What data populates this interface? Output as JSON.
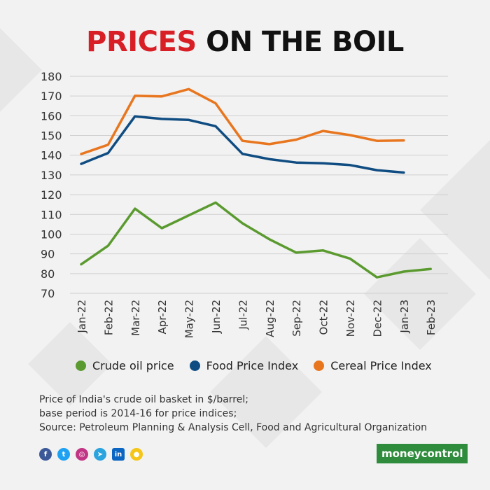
{
  "title": {
    "part1": "PRICES",
    "part2": "ON THE BOIL"
  },
  "colors": {
    "title_red": "#d81f26",
    "crude": "#5a9a2f",
    "food": "#0f4c81",
    "cereal": "#e8761f"
  },
  "chart_data": {
    "type": "line",
    "x": [
      "Jan-22",
      "Feb-22",
      "Mar-22",
      "Apr-22",
      "May-22",
      "Jun-22",
      "Jul-22",
      "Aug-22",
      "Sep-22",
      "Oct-22",
      "Nov-22",
      "Dec-22",
      "Jan-23",
      "Feb-23"
    ],
    "ylim": [
      70,
      180
    ],
    "yticks": [
      70,
      80,
      90,
      100,
      110,
      120,
      130,
      140,
      150,
      160,
      170,
      180
    ],
    "grid": true,
    "legend_position": "bottom",
    "series": [
      {
        "name": "Crude oil price",
        "color": "#5a9a2f",
        "values": [
          84.7,
          94.1,
          112.9,
          103.0,
          109.5,
          116.0,
          105.5,
          97.4,
          90.6,
          91.7,
          87.6,
          78.1,
          81.0,
          82.3
        ]
      },
      {
        "name": "Food Price Index",
        "color": "#0f4c81",
        "values": [
          135.6,
          141.1,
          159.7,
          158.4,
          157.9,
          154.7,
          140.7,
          138.0,
          136.3,
          135.9,
          135.0,
          132.4,
          131.2,
          null
        ]
      },
      {
        "name": "Cereal Price Index",
        "color": "#e8761f",
        "values": [
          140.6,
          145.3,
          170.1,
          169.8,
          173.5,
          166.3,
          147.3,
          145.6,
          147.9,
          152.3,
          150.2,
          147.3,
          147.5,
          null
        ]
      }
    ]
  },
  "legend": [
    {
      "label": "Crude oil price",
      "color": "#5a9a2f"
    },
    {
      "label": "Food Price Index",
      "color": "#0f4c81"
    },
    {
      "label": "Cereal Price Index",
      "color": "#e8761f"
    }
  ],
  "note": {
    "line1": "Price of India's crude oil basket in $/barrel;",
    "line2": "base period is 2014-16 for price indices;",
    "line3": "Source: Petroleum Planning & Analysis Cell, Food and Agricultural Organization"
  },
  "social": [
    {
      "icon": "facebook-icon",
      "glyph": "f",
      "color": "#3b5998"
    },
    {
      "icon": "twitter-icon",
      "glyph": "t",
      "color": "#1da1f2"
    },
    {
      "icon": "instagram-icon",
      "glyph": "◎",
      "color": "#c13584"
    },
    {
      "icon": "telegram-icon",
      "glyph": "➤",
      "color": "#2aa3df"
    },
    {
      "icon": "linkedin-icon",
      "glyph": "in",
      "color": "#0a66c2"
    },
    {
      "icon": "koo-icon",
      "glyph": "●",
      "color": "#f5c518"
    }
  ],
  "brand": "moneycontrol"
}
